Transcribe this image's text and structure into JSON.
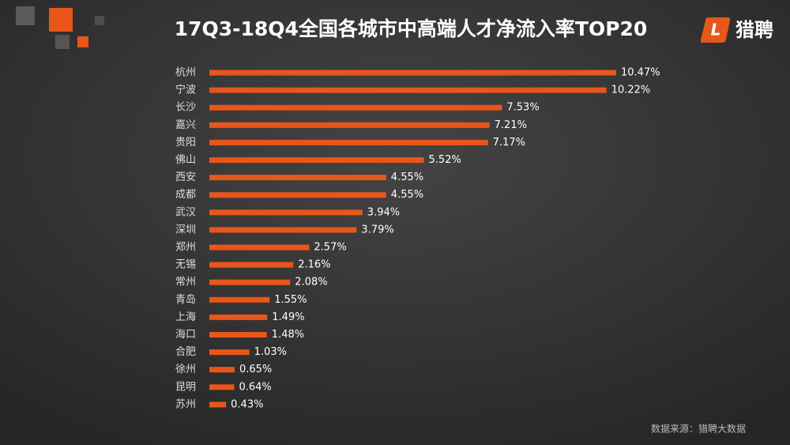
{
  "chart_data": {
    "type": "bar",
    "orientation": "horizontal",
    "title": "17Q3-18Q4全国各城市中高端人才净流入率TOP20",
    "categories": [
      "杭州",
      "宁波",
      "长沙",
      "嘉兴",
      "贵阳",
      "佛山",
      "西安",
      "成都",
      "武汉",
      "深圳",
      "郑州",
      "无锡",
      "常州",
      "青岛",
      "上海",
      "海口",
      "合肥",
      "徐州",
      "昆明",
      "苏州"
    ],
    "values": [
      10.47,
      10.22,
      7.53,
      7.21,
      7.17,
      5.52,
      4.55,
      4.55,
      3.94,
      3.79,
      2.57,
      2.16,
      2.08,
      1.55,
      1.49,
      1.48,
      1.03,
      0.65,
      0.64,
      0.43
    ],
    "value_labels": [
      "10.47%",
      "10.22%",
      "7.53%",
      "7.21%",
      "7.17%",
      "5.52%",
      "4.55%",
      "4.55%",
      "3.94%",
      "3.79%",
      "2.57%",
      "2.16%",
      "2.08%",
      "1.55%",
      "1.49%",
      "1.48%",
      "1.03%",
      "0.65%",
      "0.64%",
      "0.43%"
    ],
    "color": "#e8561a",
    "source": "数据来源：猎聘大数据"
  },
  "logo": {
    "letter": "L",
    "text": "猎聘"
  }
}
